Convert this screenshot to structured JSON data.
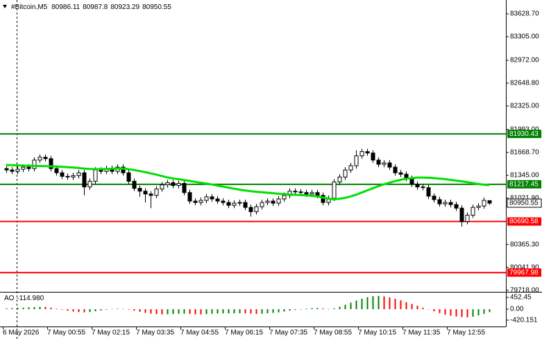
{
  "chart_data": {
    "type": "candlestick",
    "symbol": "#Bitcoin,M5",
    "categories": [
      "6 May 2026",
      null,
      null,
      null,
      null,
      null,
      null,
      null,
      "7 May 00:55",
      null,
      null,
      null,
      null,
      null,
      null,
      null,
      "7 May 02:15",
      null,
      null,
      null,
      null,
      null,
      null,
      null,
      "7 May 03:35",
      null,
      null,
      null,
      null,
      null,
      null,
      null,
      "7 May 04:55",
      null,
      null,
      null,
      null,
      null,
      null,
      null,
      "7 May 06:15",
      null,
      null,
      null,
      null,
      null,
      null,
      null,
      "7 May 07:35",
      null,
      null,
      null,
      null,
      null,
      null,
      null,
      "7 May 08:55",
      null,
      null,
      null,
      null,
      null,
      null,
      null,
      "7 May 10:15",
      null,
      null,
      null,
      null,
      null,
      null,
      null,
      "7 May 11:35",
      null,
      null,
      null,
      null,
      null,
      null,
      null,
      "7 May 12:55",
      null,
      null,
      null,
      null,
      null,
      null,
      null
    ],
    "open": [
      81440,
      81420,
      81400,
      81430,
      81460,
      81440,
      81560,
      81600,
      81580,
      81440,
      81380,
      81330,
      81320,
      81340,
      81380,
      81180,
      81260,
      81420,
      81400,
      81440,
      81400,
      81460,
      81380,
      81260,
      81160,
      81120,
      81080,
      81060,
      81150,
      81210,
      81240,
      81200,
      81230,
      81100,
      80980,
      80960,
      80990,
      81040,
      81010,
      80980,
      80960,
      80920,
      80950,
      80960,
      80890,
      80830,
      80900,
      80960,
      80980,
      80950,
      81010,
      81060,
      81120,
      81110,
      81100,
      81080,
      81100,
      81060,
      80960,
      81020,
      81250,
      81320,
      81420,
      81480,
      81620,
      81680,
      81660,
      81560,
      81500,
      81520,
      81460,
      81380,
      81360,
      81300,
      81220,
      81180,
      81170,
      81050,
      81000,
      80940,
      80960,
      80930,
      80880,
      80690,
      80780,
      80890,
      80910,
      80986.11
    ],
    "high": [
      81480,
      81460,
      81470,
      81500,
      81500,
      81600,
      81640,
      81640,
      81620,
      81480,
      81420,
      81370,
      81380,
      81420,
      81420,
      81300,
      81460,
      81460,
      81480,
      81480,
      81500,
      81500,
      81420,
      81300,
      81200,
      81160,
      81120,
      81190,
      81250,
      81280,
      81280,
      81270,
      81270,
      81140,
      81020,
      81030,
      81080,
      81080,
      81050,
      81020,
      81000,
      80990,
      81000,
      81000,
      80930,
      80940,
      81000,
      81020,
      81020,
      81050,
      81100,
      81160,
      81160,
      81150,
      81140,
      81140,
      81140,
      81100,
      81060,
      81290,
      81360,
      81460,
      81520,
      81700,
      81720,
      81720,
      81700,
      81600,
      81560,
      81560,
      81500,
      81420,
      81400,
      81340,
      81260,
      81220,
      81210,
      81090,
      81040,
      81000,
      81000,
      80970,
      80920,
      80820,
      80930,
      80950,
      81030,
      80987.8
    ],
    "low": [
      81380,
      81360,
      81360,
      81390,
      81400,
      81400,
      81520,
      81540,
      81400,
      81340,
      81290,
      81280,
      81280,
      81300,
      81060,
      81140,
      81220,
      81360,
      81360,
      81360,
      81360,
      81340,
      81220,
      81120,
      81040,
      80960,
      80880,
      81020,
      81110,
      81170,
      81160,
      81160,
      81060,
      80940,
      80920,
      80920,
      80950,
      80970,
      80940,
      80920,
      80880,
      80880,
      80910,
      80850,
      80760,
      80790,
      80860,
      80920,
      80910,
      80910,
      80970,
      81020,
      81070,
      81060,
      81040,
      81040,
      81020,
      80920,
      80920,
      80980,
      81210,
      81280,
      81380,
      81440,
      81580,
      81620,
      81520,
      81460,
      81460,
      81420,
      81340,
      81320,
      81260,
      81180,
      81140,
      81130,
      81010,
      80960,
      80900,
      80900,
      80890,
      80840,
      80620,
      80650,
      80740,
      80850,
      80870,
      80923.29
    ],
    "close": [
      81420,
      81400,
      81430,
      81460,
      81440,
      81560,
      81600,
      81580,
      81440,
      81380,
      81330,
      81320,
      81340,
      81380,
      81180,
      81260,
      81420,
      81400,
      81440,
      81400,
      81460,
      81380,
      81260,
      81160,
      81120,
      81080,
      81060,
      81150,
      81210,
      81240,
      81200,
      81230,
      81100,
      80980,
      80960,
      80990,
      81040,
      81010,
      80980,
      80960,
      80920,
      80950,
      80960,
      80890,
      80830,
      80900,
      80960,
      80980,
      80950,
      81010,
      81060,
      81120,
      81110,
      81100,
      81080,
      81100,
      81060,
      80960,
      81020,
      81250,
      81320,
      81420,
      81480,
      81620,
      81680,
      81660,
      81560,
      81500,
      81520,
      81460,
      81380,
      81360,
      81300,
      81220,
      81180,
      81170,
      81050,
      81000,
      80940,
      80960,
      80930,
      80880,
      80690,
      80780,
      80890,
      80910,
      80990,
      80950.55
    ],
    "bull_color": "#ffffff",
    "bear_color": "#000000",
    "ma": {
      "color": "#00e000",
      "values": [
        81490,
        81488,
        81485,
        81482,
        81480,
        81478,
        81476,
        81474,
        81472,
        81470,
        81465,
        81460,
        81455,
        81448,
        81440,
        81434,
        81431,
        81431,
        81434,
        81438,
        81441,
        81440,
        81432,
        81420,
        81405,
        81390,
        81372,
        81355,
        81335,
        81315,
        81300,
        81290,
        81278,
        81265,
        81252,
        81240,
        81228,
        81215,
        81200,
        81185,
        81170,
        81155,
        81142,
        81130,
        81120,
        81112,
        81105,
        81098,
        81092,
        81085,
        81078,
        81072,
        81068,
        81065,
        81060,
        81055,
        81045,
        81030,
        81015,
        81005,
        81012,
        81025,
        81045,
        81070,
        81100,
        81130,
        81160,
        81190,
        81215,
        81240,
        81262,
        81280,
        81295,
        81305,
        81312,
        81313,
        81310,
        81305,
        81298,
        81290,
        81280,
        81270,
        81260,
        81248,
        81235,
        81222,
        81212,
        81205
      ]
    },
    "levels": [
      {
        "value": 81930.43,
        "color": "#008000"
      },
      {
        "value": 81217.45,
        "color": "#008000"
      },
      {
        "value": 80690.58,
        "color": "#ff0000"
      },
      {
        "value": 79967.98,
        "color": "#ff0000"
      }
    ],
    "ylim": [
      79656,
      83825
    ],
    "yticks": [
      {
        "value": 83628.7,
        "label": "83628.70"
      },
      {
        "value": 83305,
        "label": "83305.00"
      },
      {
        "value": 82972,
        "label": "82972.00"
      },
      {
        "value": 82648.8,
        "label": "82648.80"
      },
      {
        "value": 82325,
        "label": "82325.00"
      },
      {
        "value": 81993,
        "label": "81993.00"
      },
      {
        "value": 81668.7,
        "label": "81668.70"
      },
      {
        "value": 81345,
        "label": "81345.00"
      },
      {
        "value": 81021.9,
        "label": "81021.90"
      },
      {
        "value": 80365.3,
        "label": "80365.30"
      },
      {
        "value": 80041.9,
        "label": "80041.90"
      },
      {
        "value": 79718,
        "label": "79718.00"
      }
    ],
    "ao": {
      "name": "AO",
      "current_label": "-114.980",
      "up_color": "#008000",
      "down_color": "#ff0000",
      "values": [
        30,
        40,
        50,
        60,
        70,
        80,
        90,
        85,
        60,
        20,
        -20,
        -60,
        -90,
        -110,
        -120,
        -110,
        -80,
        -50,
        -20,
        10,
        20,
        10,
        -20,
        -60,
        -100,
        -140,
        -170,
        -190,
        -200,
        -195,
        -185,
        -175,
        -170,
        -180,
        -195,
        -200,
        -190,
        -175,
        -165,
        -160,
        -160,
        -158,
        -155,
        -160,
        -170,
        -180,
        -175,
        -160,
        -140,
        -120,
        -90,
        -60,
        -30,
        -5,
        20,
        40,
        45,
        30,
        10,
        30,
        90,
        170,
        250,
        330,
        400,
        460,
        500,
        510,
        490,
        450,
        400,
        340,
        270,
        200,
        130,
        60,
        -10,
        -80,
        -150,
        -210,
        -250,
        -280,
        -300,
        -310,
        -290,
        -240,
        -180,
        -114.98
      ],
      "ylim": [
        -638,
        585
      ],
      "yticks": [
        452.45,
        {
          "value": 0,
          "label": "0.00"
        },
        -420.151
      ]
    }
  }
}
